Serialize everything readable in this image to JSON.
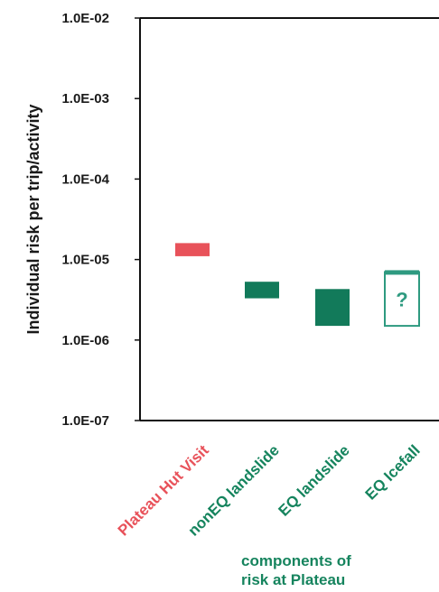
{
  "chart_data": {
    "type": "bar",
    "title": "",
    "xlabel": "",
    "ylabel": "Individual risk per trip/activity",
    "yscale": "log",
    "ylim": [
      1e-07,
      0.01
    ],
    "yticks": [
      "1.0E-02",
      "1.0E-03",
      "1.0E-04",
      "1.0E-05",
      "1.0E-06",
      "1.0E-07"
    ],
    "yticks_values": [
      0.01,
      0.001,
      0.0001,
      1e-05,
      1e-06,
      1e-07
    ],
    "grid": false,
    "categories": [
      "Plateau Hut Visit",
      "nonEQ landslide",
      "EQ landslide",
      "EQ Icefall"
    ],
    "ranges": [
      {
        "category": "Plateau Hut Visit",
        "low": 1.1e-05,
        "high": 1.6e-05,
        "color": "#e8525a",
        "style": "filled"
      },
      {
        "category": "nonEQ landslide",
        "low": 3.3e-06,
        "high": 5.3e-06,
        "color": "#127a5a",
        "style": "filled"
      },
      {
        "category": "EQ landslide",
        "low": 1.5e-06,
        "high": 4.3e-06,
        "color": "#127a5a",
        "style": "filled"
      },
      {
        "category": "EQ Icefall",
        "low": 1.5e-06,
        "high": 7e-06,
        "color": "#2e9a80",
        "style": "outline",
        "marker": "?"
      }
    ],
    "category_colors": [
      "#e8525a",
      "#16845e",
      "#16845e",
      "#16845e"
    ],
    "annotation": [
      "components of",
      "risk at Plateau"
    ],
    "annotation_color": "#16845e",
    "axis_color": "#111111"
  }
}
